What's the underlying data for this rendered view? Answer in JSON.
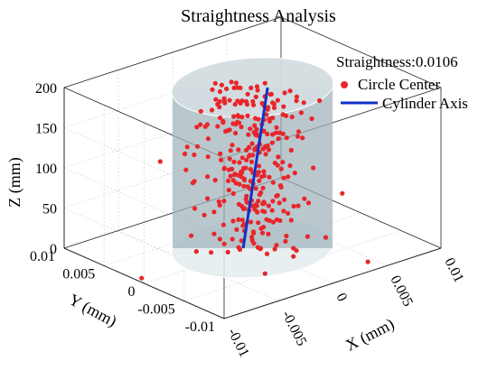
{
  "chart_data": {
    "type": "scatter",
    "title": "Straightness Analysis",
    "annotation": "Straightness:0.0106",
    "xlabel": "X (mm)",
    "ylabel": "Y (mm)",
    "zlabel": "Z (mm)",
    "xlim": [
      -0.01,
      0.01
    ],
    "ylim": [
      -0.01,
      0.01
    ],
    "zlim": [
      0,
      200
    ],
    "x_ticks": [
      -0.01,
      -0.005,
      0,
      0.005,
      0.01
    ],
    "y_ticks": [
      -0.01,
      -0.005,
      0,
      0.005,
      0.01
    ],
    "z_ticks": [
      0,
      50,
      100,
      150,
      200
    ],
    "x_tick_labels": [
      "-0.01",
      "-0.005",
      "0",
      "0.005",
      "0.01"
    ],
    "y_tick_labels": [
      "-0.01",
      "-0.005",
      "0",
      "0.005",
      "0.01"
    ],
    "z_tick_labels": [
      "0",
      "50",
      "100",
      "150",
      "200"
    ],
    "grid": true,
    "box": true,
    "legend_position": "top-right",
    "colors": {
      "points": "#e8262b",
      "axis_line": "#1030c8",
      "cylinder": "#9fb3bb"
    },
    "series": [
      {
        "name": "Circle Center",
        "kind": "points",
        "count": 300,
        "z_range": [
          0,
          200
        ],
        "xy_spread": 0.004
      },
      {
        "name": "Cylinder Axis",
        "kind": "line",
        "start": [
          -0.0005,
          0.0005,
          0
        ],
        "end": [
          0.0008,
          -0.0008,
          200
        ]
      }
    ],
    "cylinder": {
      "radius": 0.006,
      "z_range": [
        0,
        200
      ]
    }
  }
}
